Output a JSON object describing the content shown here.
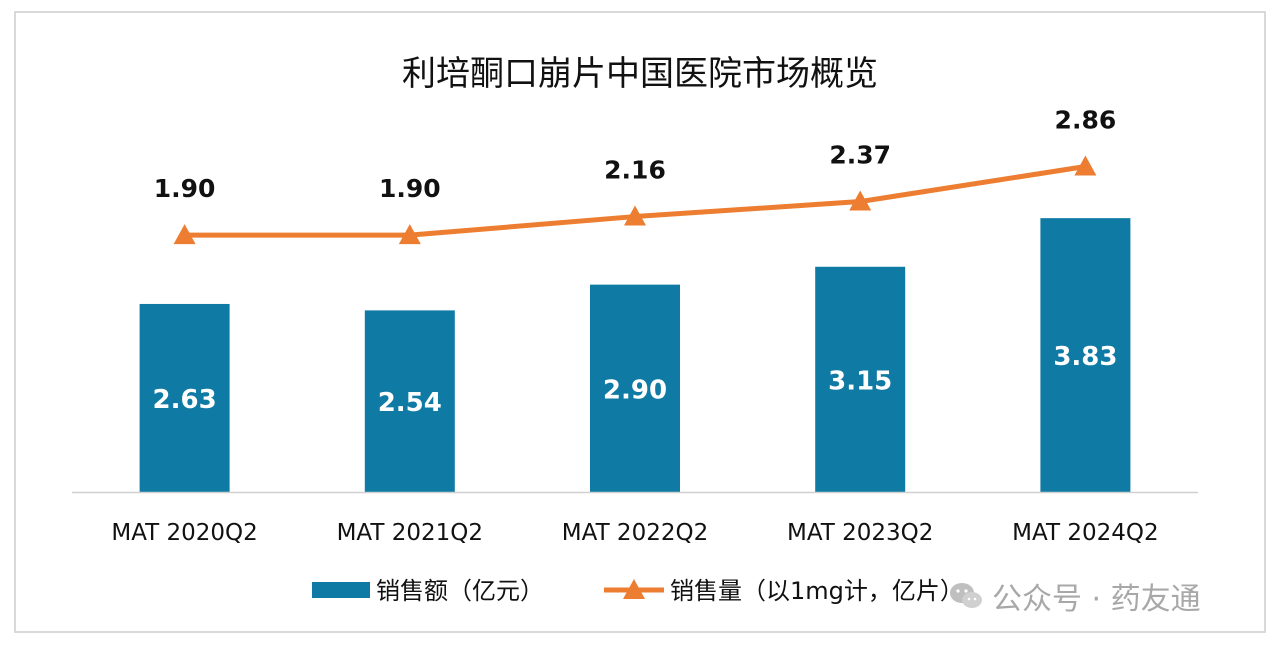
{
  "chart_data": {
    "type": "bar+line",
    "title": "利培酮口崩片中国医院市场概览",
    "categories": [
      "MAT 2020Q2",
      "MAT 2021Q2",
      "MAT 2022Q2",
      "MAT 2023Q2",
      "MAT 2024Q2"
    ],
    "series": [
      {
        "name": "销售额（亿元）",
        "type": "bar",
        "values": [
          2.63,
          2.54,
          2.9,
          3.15,
          3.83
        ],
        "labels": [
          "2.63",
          "2.54",
          "2.90",
          "3.15",
          "3.83"
        ],
        "color": "#0f7aa3"
      },
      {
        "name": "销售量（以1mg计，亿片）",
        "type": "line",
        "marker": "triangle",
        "values": [
          1.9,
          1.9,
          2.16,
          2.37,
          2.86
        ],
        "labels": [
          "1.90",
          "1.90",
          "2.16",
          "2.37",
          "2.86"
        ],
        "color": "#ed7d31"
      }
    ],
    "legend_position": "bottom-center",
    "grid": false
  },
  "watermark": {
    "text": "公众号 · 药友通",
    "icon": "wechat-icon"
  }
}
